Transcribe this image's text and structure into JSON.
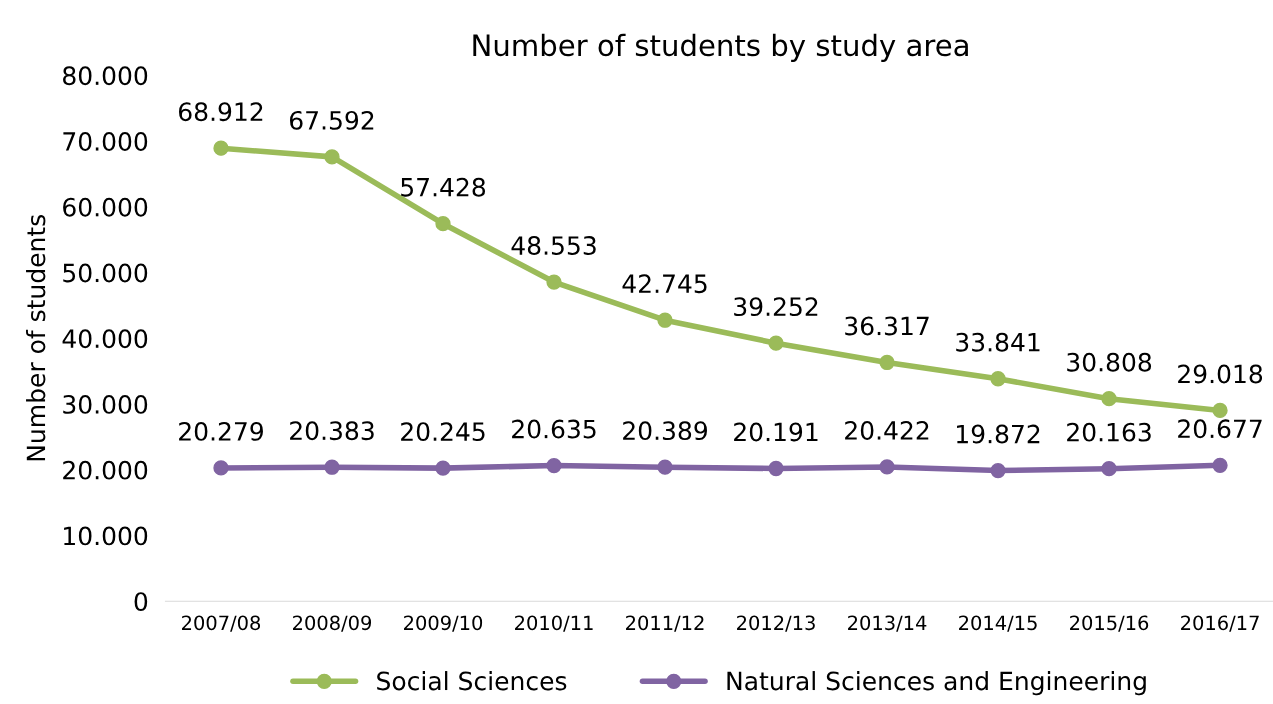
{
  "chart_data": {
    "type": "line",
    "title": "Number of students by study area",
    "ylabel": "Number of students",
    "categories": [
      "2007/08",
      "2008/09",
      "2009/10",
      "2010/11",
      "2011/12",
      "2012/13",
      "2013/14",
      "2014/15",
      "2015/16",
      "2016/17"
    ],
    "series": [
      {
        "name": "Social Sciences",
        "color": "#9bbb59",
        "values": [
          68912,
          67592,
          57428,
          48553,
          42745,
          39252,
          36317,
          33841,
          30808,
          29018
        ],
        "value_labels": [
          "68.912",
          "67.592",
          "57.428",
          "48.553",
          "42.745",
          "39.252",
          "36.317",
          "33.841",
          "30.808",
          "29.018"
        ]
      },
      {
        "name": "Natural Sciences and Engineering",
        "color": "#8064a2",
        "values": [
          20279,
          20383,
          20245,
          20635,
          20389,
          20191,
          20422,
          19872,
          20163,
          20677
        ],
        "value_labels": [
          "20.279",
          "20.383",
          "20.245",
          "20.635",
          "20.389",
          "20.191",
          "20.422",
          "19.872",
          "20.163",
          "20.677"
        ]
      }
    ],
    "ylim": [
      0,
      80000
    ],
    "yticks": [
      {
        "value": 0,
        "label": "0"
      },
      {
        "value": 10000,
        "label": "10.000"
      },
      {
        "value": 20000,
        "label": "20.000"
      },
      {
        "value": 30000,
        "label": "30.000"
      },
      {
        "value": 40000,
        "label": "40.000"
      },
      {
        "value": 50000,
        "label": "50.000"
      },
      {
        "value": 60000,
        "label": "60.000"
      },
      {
        "value": 70000,
        "label": "70.000"
      },
      {
        "value": 80000,
        "label": "80.000"
      }
    ],
    "grid": false,
    "legend": "bottom",
    "marker": "circle",
    "line_style": "solid"
  }
}
